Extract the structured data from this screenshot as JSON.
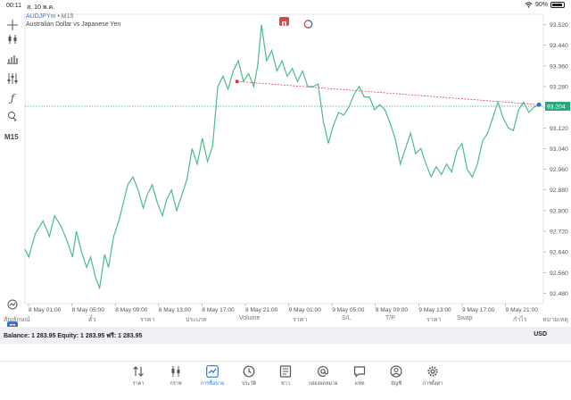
{
  "statusbar": {
    "time": "00:11",
    "date": "ส. 10 พ.ค.",
    "battery": "90%"
  },
  "chart": {
    "symbol": "AUDJPYm",
    "sep": " • ",
    "timeframe": "M15",
    "description": "Australian Dollar vs Japanese Yen",
    "current_price": "93.204",
    "line_color": "#4cbb8a",
    "price_tag_color": "#2ea67a",
    "trendline_color": "#e0405a",
    "y_labels": [
      "93.520",
      "93.440",
      "93.360",
      "93.280",
      "93.200",
      "93.120",
      "93.040",
      "92.960",
      "92.880",
      "92.800",
      "92.720",
      "92.640",
      "92.560",
      "92.480"
    ],
    "x_labels": [
      "8 May 01:00",
      "8 May 05:00",
      "8 May 09:00",
      "8 May 13:00",
      "8 May 17:00",
      "8 May 21:00",
      "9 May 01:00",
      "9 May 05:00",
      "9 May 09:00",
      "9 May 13:00",
      "9 May 17:00",
      "9 May 21:00"
    ]
  },
  "chart_data": {
    "type": "line",
    "title": "AUDJPYm, M15",
    "ylim": [
      92.44,
      93.56
    ],
    "x_range": [
      "8 May 00:00",
      "9 May 22:20"
    ],
    "current_price": 93.204,
    "series": [
      {
        "name": "AUDJPYm",
        "points": [
          [
            0,
            92.65
          ],
          [
            0.3,
            92.62
          ],
          [
            0.8,
            92.71
          ],
          [
            1.4,
            92.76
          ],
          [
            1.9,
            92.7
          ],
          [
            2.3,
            92.78
          ],
          [
            2.8,
            92.74
          ],
          [
            3.3,
            92.68
          ],
          [
            3.7,
            92.62
          ],
          [
            4.0,
            92.72
          ],
          [
            4.4,
            92.64
          ],
          [
            4.8,
            92.58
          ],
          [
            5.1,
            92.62
          ],
          [
            5.5,
            92.54
          ],
          [
            5.8,
            92.5
          ],
          [
            6.2,
            92.63
          ],
          [
            6.5,
            92.58
          ],
          [
            6.9,
            92.7
          ],
          [
            7.3,
            92.76
          ],
          [
            7.6,
            92.82
          ],
          [
            8.0,
            92.9
          ],
          [
            8.4,
            92.93
          ],
          [
            8.8,
            92.88
          ],
          [
            9.2,
            92.81
          ],
          [
            9.5,
            92.86
          ],
          [
            9.9,
            92.9
          ],
          [
            10.3,
            92.83
          ],
          [
            10.7,
            92.78
          ],
          [
            11.0,
            92.84
          ],
          [
            11.4,
            92.88
          ],
          [
            11.8,
            92.8
          ],
          [
            12.2,
            92.86
          ],
          [
            12.6,
            92.92
          ],
          [
            13.0,
            93.04
          ],
          [
            13.4,
            92.98
          ],
          [
            13.8,
            93.08
          ],
          [
            14.2,
            92.99
          ],
          [
            14.6,
            93.05
          ],
          [
            15.0,
            93.28
          ],
          [
            15.4,
            93.32
          ],
          [
            15.8,
            93.27
          ],
          [
            16.2,
            93.34
          ],
          [
            16.6,
            93.38
          ],
          [
            17.0,
            93.3
          ],
          [
            17.4,
            93.33
          ],
          [
            17.8,
            93.28
          ],
          [
            18.1,
            93.36
          ],
          [
            18.4,
            93.52
          ],
          [
            18.8,
            93.38
          ],
          [
            19.2,
            93.42
          ],
          [
            19.6,
            93.34
          ],
          [
            20.0,
            93.38
          ],
          [
            20.4,
            93.32
          ],
          [
            20.8,
            93.35
          ],
          [
            21.2,
            93.3
          ],
          [
            21.6,
            93.34
          ],
          [
            22.0,
            93.28
          ],
          [
            22.4,
            93.28
          ],
          [
            22.8,
            93.29
          ],
          [
            23.2,
            93.15
          ],
          [
            23.6,
            93.06
          ],
          [
            24.0,
            93.13
          ],
          [
            24.4,
            93.18
          ],
          [
            24.8,
            93.17
          ],
          [
            25.2,
            93.2
          ],
          [
            25.6,
            93.25
          ],
          [
            26.0,
            93.28
          ],
          [
            26.4,
            93.24
          ],
          [
            26.8,
            93.24
          ],
          [
            27.2,
            93.19
          ],
          [
            27.6,
            93.21
          ],
          [
            28.0,
            93.19
          ],
          [
            28.4,
            93.14
          ],
          [
            28.8,
            93.08
          ],
          [
            29.2,
            92.98
          ],
          [
            29.6,
            93.04
          ],
          [
            30.0,
            93.1
          ],
          [
            30.4,
            93.02
          ],
          [
            30.8,
            93.04
          ],
          [
            31.2,
            92.98
          ],
          [
            31.6,
            92.93
          ],
          [
            32.0,
            92.97
          ],
          [
            32.4,
            92.94
          ],
          [
            32.8,
            92.98
          ],
          [
            33.2,
            92.95
          ],
          [
            33.6,
            93.03
          ],
          [
            34.0,
            93.06
          ],
          [
            34.4,
            92.96
          ],
          [
            34.8,
            92.93
          ],
          [
            35.2,
            92.98
          ],
          [
            35.6,
            93.07
          ],
          [
            36.0,
            93.1
          ],
          [
            36.4,
            93.16
          ],
          [
            36.8,
            93.22
          ],
          [
            37.2,
            93.16
          ],
          [
            37.6,
            93.12
          ],
          [
            38.0,
            93.11
          ],
          [
            38.4,
            93.19
          ],
          [
            38.8,
            93.22
          ],
          [
            39.2,
            93.18
          ],
          [
            39.6,
            93.2
          ],
          [
            40.0,
            93.21
          ]
        ]
      }
    ],
    "trendline": [
      [
        16.5,
        93.3
      ],
      [
        40.0,
        93.21
      ]
    ]
  },
  "columns": [
    "สัญลักษณ์",
    "ตั๋ว",
    "ราคา",
    "ประเภท",
    "Volume",
    "ราคา",
    "S/L",
    "T/P",
    "ราคา",
    "Swap",
    "กำไร",
    "หมายเหตุ"
  ],
  "balance": {
    "text": "Balance: 1 283.95 Equity: 1 283.95 ฟรี: 1 283.95",
    "currency": "USD"
  },
  "nav": {
    "active_color": "#2d7bd6",
    "items": [
      {
        "label": "ราคา",
        "icon": "quotes-arrows-icon"
      },
      {
        "label": "กราฟ",
        "icon": "candlestick-icon"
      },
      {
        "label": "การซื้อขาย",
        "icon": "trade-chart-icon"
      },
      {
        "label": "ประวัติ",
        "icon": "history-clock-icon"
      },
      {
        "label": "ข่าว",
        "icon": "news-icon"
      },
      {
        "label": "กล่องจดหมาย",
        "icon": "mailbox-at-icon"
      },
      {
        "label": "แชท",
        "icon": "chat-icon"
      },
      {
        "label": "บัญชี",
        "icon": "account-icon"
      },
      {
        "label": "การตั้งค่า",
        "icon": "settings-gear-icon"
      }
    ]
  }
}
